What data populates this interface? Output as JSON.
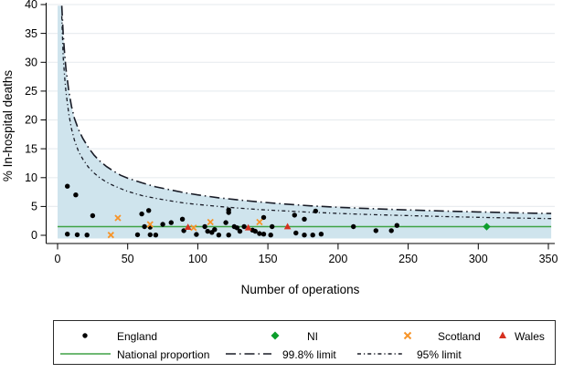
{
  "figure": {
    "x_axis_title": "Number of operations",
    "y_axis_title": "% In-hospital deaths"
  },
  "legend": {
    "england": "England",
    "ni": "NI",
    "scotland": "Scotland",
    "wales": "Wales",
    "national": "National proportion",
    "limit998": "99.8% limit",
    "limit95": "95% limit"
  },
  "colors": {
    "fill": "#cfe4ed",
    "limit_line": "#191c27",
    "national_line": "#3fa245",
    "england": "#000000",
    "ni": "#0c9e2c",
    "scotland": "#f79428",
    "wales": "#d6301f",
    "grid": "#e9edf0",
    "axis": "#000000"
  },
  "chart_data": {
    "type": "scatter",
    "title": "",
    "xlabel": "Number of operations",
    "ylabel": "% In-hospital deaths",
    "xlim": [
      0,
      350
    ],
    "ylim": [
      0,
      40
    ],
    "x_ticks": [
      0,
      50,
      100,
      150,
      200,
      250,
      300,
      350
    ],
    "y_ticks": [
      0,
      5,
      10,
      15,
      20,
      25,
      30,
      35,
      40
    ],
    "grid": "horizontal",
    "legend_position": "bottom-box",
    "national_proportion_pct": 1.5,
    "series": [
      {
        "name": "England",
        "marker": "circle",
        "points": [
          [
            7,
            8.5
          ],
          [
            7,
            0.2
          ],
          [
            13,
            7.0
          ],
          [
            14,
            0.1
          ],
          [
            21,
            0.05
          ],
          [
            25,
            3.4
          ],
          [
            57,
            0.1
          ],
          [
            60,
            3.7
          ],
          [
            62,
            1.5
          ],
          [
            65,
            4.3
          ],
          [
            66,
            1.4
          ],
          [
            66,
            0.1
          ],
          [
            70,
            0.05
          ],
          [
            75,
            1.9
          ],
          [
            81,
            2.2
          ],
          [
            89,
            2.8
          ],
          [
            90,
            0.8
          ],
          [
            99,
            0.15
          ],
          [
            105,
            1.5
          ],
          [
            107,
            0.7
          ],
          [
            110,
            0.5
          ],
          [
            112,
            1.0
          ],
          [
            115,
            0.05
          ],
          [
            120,
            2.2
          ],
          [
            122,
            4.4
          ],
          [
            122,
            3.95
          ],
          [
            122,
            0.05
          ],
          [
            126,
            1.5
          ],
          [
            128,
            1.3
          ],
          [
            130,
            0.7
          ],
          [
            133,
            1.5
          ],
          [
            139,
            0.9
          ],
          [
            141,
            0.7
          ],
          [
            144,
            0.3
          ],
          [
            147,
            3.1
          ],
          [
            147,
            0.2
          ],
          [
            152,
            0.05
          ],
          [
            153,
            1.5
          ],
          [
            169,
            3.5
          ],
          [
            170,
            0.4
          ],
          [
            176,
            2.8
          ],
          [
            176,
            0.05
          ],
          [
            182,
            0.05
          ],
          [
            184,
            4.2
          ],
          [
            188,
            0.2
          ],
          [
            211,
            1.5
          ],
          [
            227,
            0.8
          ],
          [
            238,
            0.8
          ],
          [
            242,
            1.7
          ]
        ]
      },
      {
        "name": "NI",
        "marker": "diamond",
        "points": [
          [
            306,
            1.5
          ]
        ]
      },
      {
        "name": "Scotland",
        "marker": "x",
        "points": [
          [
            38,
            0.05
          ],
          [
            43,
            3.0
          ],
          [
            66,
            1.9
          ],
          [
            97,
            1.3
          ],
          [
            109,
            2.3
          ],
          [
            144,
            2.3
          ]
        ]
      },
      {
        "name": "Wales",
        "marker": "triangle",
        "points": [
          [
            93,
            1.4
          ],
          [
            136,
            1.3
          ],
          [
            164,
            1.5
          ]
        ]
      }
    ],
    "limits": {
      "upper_99_8": [
        [
          3,
          39.8
        ],
        [
          4,
          35
        ],
        [
          5,
          31.5
        ],
        [
          6,
          28.8
        ],
        [
          8,
          25
        ],
        [
          10,
          22.3
        ],
        [
          12,
          20.3
        ],
        [
          15,
          18.3
        ],
        [
          18,
          16.8
        ],
        [
          22,
          15.2
        ],
        [
          26,
          13.9
        ],
        [
          30,
          12.9
        ],
        [
          35,
          11.9
        ],
        [
          40,
          11.1
        ],
        [
          45,
          10.4
        ],
        [
          50,
          9.9
        ],
        [
          60,
          9.1
        ],
        [
          70,
          8.4
        ],
        [
          80,
          7.9
        ],
        [
          90,
          7.4
        ],
        [
          100,
          7.0
        ],
        [
          115,
          6.5
        ],
        [
          130,
          6.1
        ],
        [
          145,
          5.75
        ],
        [
          160,
          5.45
        ],
        [
          180,
          5.1
        ],
        [
          200,
          4.85
        ],
        [
          220,
          4.65
        ],
        [
          240,
          4.48
        ],
        [
          260,
          4.32
        ],
        [
          280,
          4.18
        ],
        [
          300,
          4.05
        ],
        [
          320,
          3.93
        ],
        [
          340,
          3.83
        ],
        [
          352,
          3.78
        ]
      ],
      "upper_95": [
        [
          3,
          38
        ],
        [
          4,
          31
        ],
        [
          5,
          27.5
        ],
        [
          6,
          24.8
        ],
        [
          8,
          21
        ],
        [
          10,
          18.4
        ],
        [
          12,
          16.5
        ],
        [
          15,
          14.5
        ],
        [
          18,
          13.2
        ],
        [
          22,
          11.8
        ],
        [
          26,
          10.8
        ],
        [
          30,
          10.0
        ],
        [
          35,
          9.2
        ],
        [
          40,
          8.6
        ],
        [
          45,
          8.1
        ],
        [
          50,
          7.6
        ],
        [
          60,
          6.9
        ],
        [
          70,
          6.4
        ],
        [
          80,
          6.0
        ],
        [
          90,
          5.6
        ],
        [
          100,
          5.35
        ],
        [
          115,
          5.0
        ],
        [
          130,
          4.7
        ],
        [
          145,
          4.45
        ],
        [
          160,
          4.25
        ],
        [
          180,
          4.0
        ],
        [
          200,
          3.8
        ],
        [
          220,
          3.62
        ],
        [
          240,
          3.48
        ],
        [
          260,
          3.35
        ],
        [
          280,
          3.22
        ],
        [
          300,
          3.12
        ],
        [
          320,
          3.02
        ],
        [
          340,
          2.94
        ],
        [
          352,
          2.9
        ]
      ],
      "fill_bottom_pct": -0.55,
      "x_end": 352
    }
  }
}
